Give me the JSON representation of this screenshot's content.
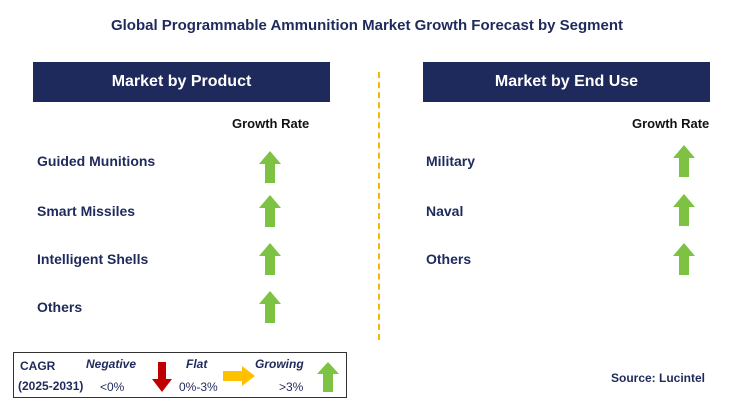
{
  "title": "Global Programmable Ammunition Market Growth Forecast by Segment",
  "left_panel": {
    "header": "Market by Product",
    "growth_label": "Growth Rate",
    "rows": [
      {
        "label": "Guided Munitions",
        "trend": "growing"
      },
      {
        "label": "Smart Missiles",
        "trend": "growing"
      },
      {
        "label": "Intelligent Shells",
        "trend": "growing"
      },
      {
        "label": "Others",
        "trend": "growing"
      }
    ]
  },
  "right_panel": {
    "header": "Market by End Use",
    "growth_label": "Growth Rate",
    "rows": [
      {
        "label": "Military",
        "trend": "growing"
      },
      {
        "label": "Naval",
        "trend": "growing"
      },
      {
        "label": "Others",
        "trend": "growing"
      }
    ]
  },
  "legend": {
    "cagr_label": "CAGR",
    "period": "(2025-2031)",
    "negative": {
      "label": "Negative",
      "range": "<0%",
      "color": "#c00000",
      "icon": "arrow-down-icon"
    },
    "flat": {
      "label": "Flat",
      "range": "0%-3%",
      "color": "#ffc000",
      "icon": "arrow-right-icon"
    },
    "growing": {
      "label": "Growing",
      "range": ">3%",
      "color": "#7dc242",
      "icon": "arrow-up-icon"
    }
  },
  "source": "Source: Lucintel",
  "colors": {
    "header_bg": "#1f2a5c",
    "text": "#1f2a5c",
    "divider": "#f5b800",
    "growing_arrow": "#7dc242"
  }
}
